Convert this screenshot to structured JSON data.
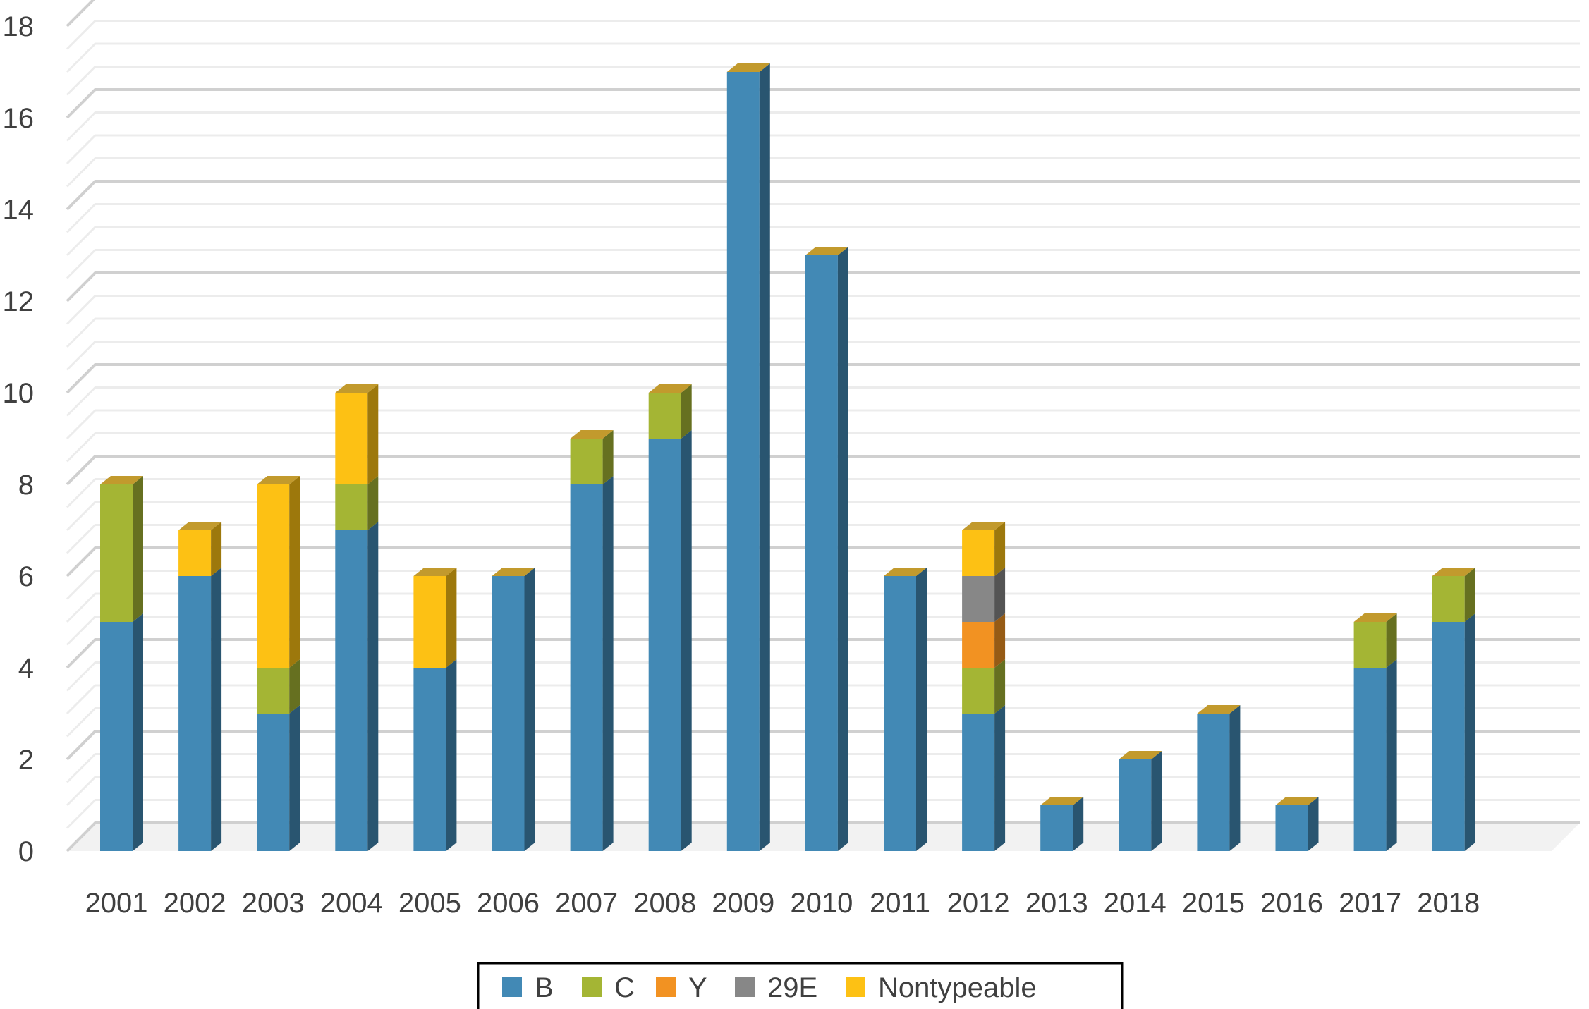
{
  "chart_data": {
    "type": "bar",
    "stacked": true,
    "three_d": true,
    "categories": [
      "2001",
      "2002",
      "2003",
      "2004",
      "2005",
      "2006",
      "2007",
      "2008",
      "2009",
      "2010",
      "2011",
      "2012",
      "2013",
      "2014",
      "2015",
      "2016",
      "2017",
      "2018"
    ],
    "series": [
      {
        "name": "B",
        "color": "#4289b5",
        "values": [
          5,
          6,
          3,
          7,
          4,
          6,
          8,
          9,
          17,
          13,
          6,
          3,
          1,
          2,
          3,
          1,
          4,
          5
        ]
      },
      {
        "name": "C",
        "color": "#a4b534",
        "values": [
          3,
          0,
          1,
          1,
          0,
          0,
          1,
          1,
          0,
          0,
          0,
          1,
          0,
          0,
          0,
          0,
          1,
          1
        ]
      },
      {
        "name": "Y",
        "color": "#f29222",
        "values": [
          0,
          0,
          0,
          0,
          0,
          0,
          0,
          0,
          0,
          0,
          0,
          1,
          0,
          0,
          0,
          0,
          0,
          0
        ]
      },
      {
        "name": "29E",
        "color": "#878787",
        "values": [
          0,
          0,
          0,
          0,
          0,
          0,
          0,
          0,
          0,
          0,
          0,
          1,
          0,
          0,
          0,
          0,
          0,
          0
        ]
      },
      {
        "name": "Nontypeable",
        "color": "#fdc114",
        "values": [
          0,
          1,
          4,
          2,
          2,
          0,
          0,
          0,
          0,
          0,
          0,
          1,
          0,
          0,
          0,
          0,
          0,
          0
        ]
      }
    ],
    "y_ticks": [
      "0",
      "2",
      "4",
      "6",
      "8",
      "10",
      "12",
      "14",
      "16",
      "18"
    ],
    "ylim": [
      0,
      18
    ],
    "grid": true,
    "legend_position": "bottom",
    "top_color": "#c29a2d"
  }
}
